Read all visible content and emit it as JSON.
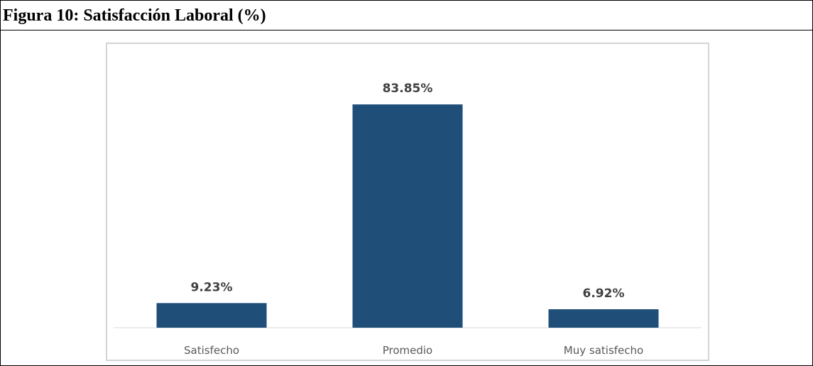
{
  "figure": {
    "title": "Figura 10: Satisfacción Laboral (%)"
  },
  "chart_data": {
    "type": "bar",
    "title": "",
    "xlabel": "",
    "ylabel": "",
    "categories": [
      "Satisfecho",
      "Promedio",
      "Muy satisfecho"
    ],
    "values": [
      9.23,
      83.85,
      6.92
    ],
    "data_labels": [
      "9.23%",
      "83.85%",
      "6.92%"
    ],
    "ylim": [
      0,
      100
    ],
    "grid": false,
    "legend": "none",
    "bar_color": "#1f4e79"
  }
}
